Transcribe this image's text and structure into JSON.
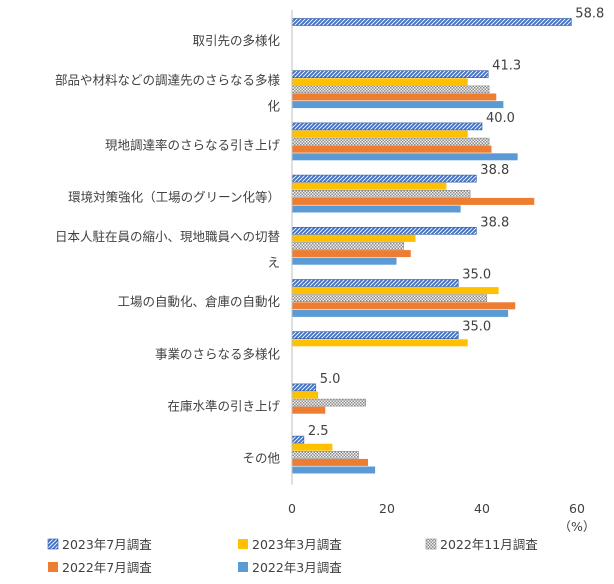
{
  "chart_data": {
    "type": "bar",
    "orientation": "horizontal",
    "unit": "（%）",
    "xlim": [
      0,
      60
    ],
    "x_ticks": [
      "0",
      "20",
      "40",
      "60"
    ],
    "grid": false,
    "legend_position": "bottom",
    "categories": [
      "取引先の多様化",
      "部品や材料などの調達先のさらなる多様化",
      "現地調達率のさらなる引き上げ",
      "環境対策強化（工場のグリーン化等）",
      "日本人駐在員の縮小、現地職員への切替え",
      "工場の自動化、倉庫の自動化",
      "事業のさらなる多様化",
      "在庫水準の引き上げ",
      "その他"
    ],
    "category_lines": [
      [
        "取引先の多様化"
      ],
      [
        "部品や材料などの調達先のさらなる多様",
        "化"
      ],
      [
        "現地調達率のさらなる引き上げ"
      ],
      [
        "環境対策強化（工場のグリーン化等）"
      ],
      [
        "日本人駐在員の縮小、現地職員への切替",
        "え"
      ],
      [
        "工場の自動化、倉庫の自動化"
      ],
      [
        "事業のさらなる多様化"
      ],
      [
        "在庫水準の引き上げ"
      ],
      [
        "その他"
      ]
    ],
    "series": [
      {
        "name": "2023年7月調査",
        "color": "#4472C4",
        "pattern": "hatch",
        "values": [
          58.8,
          41.3,
          40.0,
          38.8,
          38.8,
          35.0,
          35.0,
          5.0,
          2.5
        ],
        "labels": [
          "58.8",
          "41.3",
          "40.0",
          "38.8",
          "38.8",
          "35.0",
          "35.0",
          "5.0",
          "2.5"
        ]
      },
      {
        "name": "2023年3月調査",
        "color": "#FFC000",
        "pattern": "solid",
        "values": [
          null,
          37.0,
          37.0,
          32.5,
          26.0,
          43.5,
          37.0,
          5.5,
          8.5
        ]
      },
      {
        "name": "2022年11月調査",
        "color": "#A5A5A5",
        "pattern": "dots",
        "values": [
          null,
          41.5,
          41.5,
          37.5,
          23.5,
          41.0,
          null,
          15.5,
          14.0
        ]
      },
      {
        "name": "2022年7月調査",
        "color": "#ED7D31",
        "pattern": "solid",
        "values": [
          null,
          43.0,
          42.0,
          51.0,
          25.0,
          47.0,
          null,
          7.0,
          16.0
        ]
      },
      {
        "name": "2022年3月調査",
        "color": "#5B9BD5",
        "pattern": "solid",
        "values": [
          null,
          44.5,
          47.5,
          35.5,
          22.0,
          45.5,
          null,
          null,
          17.5
        ]
      }
    ]
  }
}
